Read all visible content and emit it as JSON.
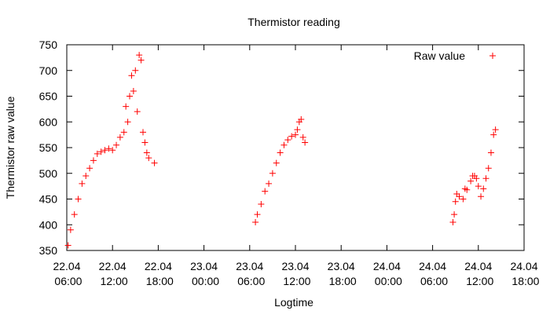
{
  "chart_data": {
    "type": "scatter",
    "title": "Thermistor reading",
    "x_label": "Logtime",
    "y_label": "Thermistor raw value",
    "xlim": [
      "22.04 06:00",
      "24.04 18:00"
    ],
    "xticks": [
      "22.04 06:00",
      "22.04 12:00",
      "22.04 18:00",
      "23.04 00:00",
      "23.04 06:00",
      "23.04 12:00",
      "23.04 18:00",
      "24.04 00:00",
      "24.04 06:00",
      "24.04 12:00",
      "24.04 18:00"
    ],
    "ylim": [
      350,
      750
    ],
    "yticks": [
      350,
      400,
      450,
      500,
      550,
      600,
      650,
      700,
      750
    ],
    "grid": false,
    "legend": "top-right",
    "series": [
      {
        "name": "Raw value",
        "color": "#ff0000",
        "x": [
          "22.04 06:10",
          "22.04 06:30",
          "22.04 07:00",
          "22.04 07:30",
          "22.04 08:00",
          "22.04 08:30",
          "22.04 09:00",
          "22.04 09:30",
          "22.04 10:00",
          "22.04 10:30",
          "22.04 11:00",
          "22.04 11:30",
          "22.04 12:00",
          "22.04 12:30",
          "22.04 13:00",
          "22.04 13:30",
          "22.04 13:45",
          "22.04 14:00",
          "22.04 14:15",
          "22.04 14:30",
          "22.04 14:45",
          "22.04 15:00",
          "22.04 15:15",
          "22.04 15:30",
          "22.04 15:45",
          "22.04 16:00",
          "22.04 16:15",
          "22.04 16:30",
          "22.04 16:45",
          "22.04 17:30",
          "23.04 06:45",
          "23.04 07:00",
          "23.04 07:30",
          "23.04 08:00",
          "23.04 08:30",
          "23.04 09:00",
          "23.04 09:30",
          "23.04 10:00",
          "23.04 10:30",
          "23.04 11:00",
          "23.04 11:30",
          "23.04 12:00",
          "23.04 12:15",
          "23.04 12:30",
          "23.04 12:45",
          "23.04 13:00",
          "23.04 13:15",
          "24.04 08:40",
          "24.04 08:50",
          "24.04 09:00",
          "24.04 09:10",
          "24.04 09:30",
          "24.04 10:00",
          "24.04 10:15",
          "24.04 10:30",
          "24.04 11:00",
          "24.04 11:15",
          "24.04 11:30",
          "24.04 11:45",
          "24.04 12:00",
          "24.04 12:20",
          "24.04 12:40",
          "24.04 13:00",
          "24.04 13:20",
          "24.04 13:40",
          "24.04 14:00",
          "24.04 14:15"
        ],
        "values": [
          360,
          390,
          420,
          450,
          480,
          495,
          510,
          525,
          538,
          542,
          545,
          548,
          545,
          555,
          570,
          580,
          630,
          600,
          650,
          690,
          660,
          700,
          620,
          730,
          720,
          580,
          560,
          540,
          530,
          520,
          405,
          420,
          440,
          465,
          480,
          500,
          520,
          540,
          555,
          565,
          572,
          575,
          585,
          600,
          605,
          570,
          560,
          405,
          420,
          445,
          460,
          455,
          450,
          470,
          468,
          485,
          495,
          495,
          490,
          475,
          455,
          470,
          490,
          510,
          540,
          575,
          585
        ]
      }
    ]
  }
}
